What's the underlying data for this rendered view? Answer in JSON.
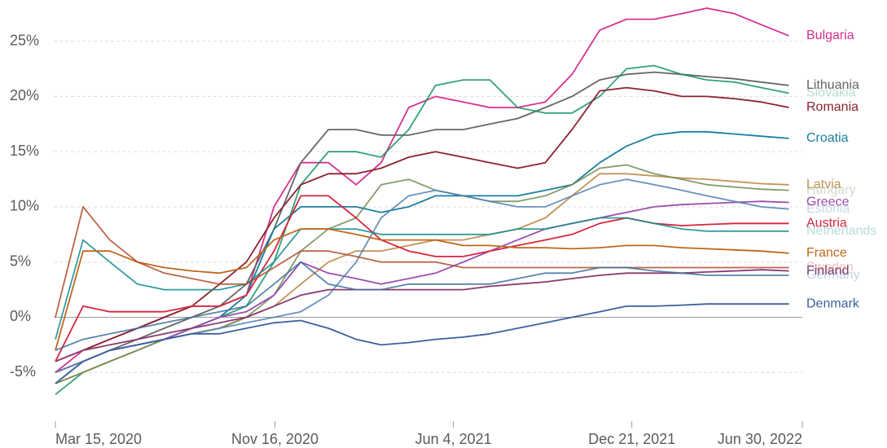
{
  "chart_data": {
    "type": "line",
    "x": [
      "2020-03-15",
      "2020-04-15",
      "2020-05-15",
      "2020-06-15",
      "2020-07-15",
      "2020-08-15",
      "2020-09-15",
      "2020-10-15",
      "2020-11-15",
      "2020-12-15",
      "2021-01-15",
      "2021-02-15",
      "2021-03-15",
      "2021-04-15",
      "2021-05-15",
      "2021-06-15",
      "2021-07-15",
      "2021-08-15",
      "2021-09-15",
      "2021-10-15",
      "2021-11-15",
      "2021-12-15",
      "2022-01-15",
      "2022-02-15",
      "2022-03-15",
      "2022-04-15",
      "2022-05-15",
      "2022-06-15"
    ],
    "xlim": [
      "2020-03-15",
      "2022-06-30"
    ],
    "xticks": [
      {
        "value": "2020-03-15",
        "label": "Mar 15, 2020"
      },
      {
        "value": "2020-11-16",
        "label": "Nov 16, 2020"
      },
      {
        "value": "2021-06-04",
        "label": "Jun 4, 2021"
      },
      {
        "value": "2021-12-21",
        "label": "Dec 21, 2021"
      },
      {
        "value": "2022-06-30",
        "label": "Jun 30, 2022"
      }
    ],
    "ylim": [
      -10,
      28
    ],
    "yticks": [
      {
        "value": -5,
        "label": "-5%"
      },
      {
        "value": 0,
        "label": "0%"
      },
      {
        "value": 5,
        "label": "5%"
      },
      {
        "value": 10,
        "label": "10%"
      },
      {
        "value": 15,
        "label": "15%"
      },
      {
        "value": 20,
        "label": "20%"
      },
      {
        "value": 25,
        "label": "25%"
      }
    ],
    "grid": true,
    "series": [
      {
        "name": "Bulgaria",
        "color": "#d6318f",
        "muted": false,
        "values": [
          -5,
          -3,
          -2,
          -1,
          0,
          1,
          1,
          2,
          10,
          14,
          14,
          12,
          14,
          19,
          20,
          19.5,
          19,
          19,
          19.5,
          22,
          26,
          27,
          27,
          27.5,
          28,
          27.5,
          26.5,
          25.5
        ]
      },
      {
        "name": "Lithuania",
        "color": "#666666",
        "muted": false,
        "values": [
          -6,
          -4,
          -3,
          -2,
          -1,
          0,
          1,
          3,
          8,
          14,
          17,
          17,
          16.5,
          16.5,
          17,
          17,
          17.5,
          18,
          19,
          20,
          21.5,
          22,
          22.2,
          22,
          21.8,
          21.6,
          21.3,
          21
        ]
      },
      {
        "name": "Slovakia",
        "color": "#109060",
        "muted": true,
        "values": [
          -7,
          -5,
          -4,
          -3,
          -2,
          -1,
          0,
          1,
          5,
          12,
          15,
          15,
          14.5,
          17,
          21,
          21.5,
          21.5,
          19,
          18.5,
          18.5,
          20,
          22.5,
          22.8,
          22,
          21.5,
          21.3,
          20.8,
          20.3
        ]
      },
      {
        "name": "Romania",
        "color": "#8b2330",
        "muted": false,
        "values": [
          -4,
          -3,
          -2,
          -1,
          0,
          1,
          3,
          5,
          9,
          12,
          13,
          13,
          13.5,
          14.5,
          15,
          14.5,
          14,
          13.5,
          14,
          17,
          20.5,
          20.8,
          20.5,
          20,
          20,
          19.8,
          19.5,
          19
        ]
      },
      {
        "name": "Croatia",
        "color": "#1a7fa0",
        "muted": false,
        "values": [
          -5,
          -4,
          -3,
          -2.5,
          -2,
          -1,
          0,
          2,
          8,
          10,
          10,
          10,
          9.5,
          10,
          11,
          11,
          11,
          11,
          11.5,
          12,
          14,
          15.5,
          16.5,
          16.8,
          16.8,
          16.6,
          16.4,
          16.2
        ]
      },
      {
        "name": "Latvia",
        "color": "#c39256",
        "muted": false,
        "values": [
          -6,
          -5,
          -4,
          -3,
          -2,
          -1.5,
          -1,
          0,
          1,
          3,
          5,
          6,
          6,
          6.5,
          7,
          7,
          7.5,
          8,
          9,
          11,
          13,
          13,
          12.8,
          12.6,
          12.5,
          12.3,
          12.1,
          12
        ]
      },
      {
        "name": "Hungary",
        "color": "#6c8c52",
        "muted": true,
        "values": [
          -6,
          -5,
          -4,
          -3,
          -2,
          -1.5,
          -1,
          0,
          2,
          6,
          8,
          9,
          12,
          12.5,
          11.5,
          11,
          10.5,
          10.5,
          11,
          12,
          13.5,
          13.8,
          13,
          12.5,
          12,
          11.8,
          11.6,
          11.5
        ]
      },
      {
        "name": "Greece",
        "color": "#9b4db0",
        "muted": false,
        "values": [
          -5,
          -4,
          -3,
          -2.5,
          -2,
          -1,
          0,
          0.5,
          2,
          5,
          4,
          3.5,
          3,
          3.5,
          4,
          5,
          6,
          7,
          8,
          8.5,
          9,
          9.5,
          10,
          10.2,
          10.3,
          10.4,
          10.5,
          10.4
        ]
      },
      {
        "name": "Estonia",
        "color": "#4d7fb0",
        "muted": true,
        "values": [
          -5,
          -4,
          -3,
          -2.5,
          -2,
          -1.5,
          -1,
          -0.5,
          0,
          0.5,
          2,
          5,
          9,
          11,
          11.5,
          11,
          10.5,
          10,
          10,
          11,
          12,
          12.5,
          12,
          11.5,
          11,
          10.5,
          10,
          9.8
        ]
      },
      {
        "name": "Austria",
        "color": "#d7263d",
        "muted": false,
        "values": [
          -4,
          1,
          0.5,
          0.5,
          0.5,
          1,
          1,
          2,
          6,
          11,
          11,
          9,
          7,
          6,
          5.5,
          5.5,
          6,
          6.5,
          7,
          7.5,
          8.5,
          9,
          8.5,
          8.3,
          8.4,
          8.5,
          8.5,
          8.5
        ]
      },
      {
        "name": "Netherlands",
        "color": "#108c8c",
        "muted": true,
        "values": [
          -2,
          7,
          5,
          3,
          2.5,
          2.5,
          2.5,
          3,
          5,
          8,
          8,
          8,
          7.5,
          7.5,
          7.5,
          7.5,
          7.5,
          8,
          8,
          8.5,
          9,
          9,
          8.5,
          8,
          7.8,
          7.8,
          7.8,
          7.8
        ]
      },
      {
        "name": "France",
        "color": "#c0661b",
        "muted": false,
        "values": [
          -3,
          6,
          6,
          5,
          4.5,
          4.2,
          4,
          4.5,
          7,
          8,
          8,
          7.5,
          7,
          7,
          7,
          6.5,
          6.5,
          6.3,
          6.3,
          6.2,
          6.3,
          6.5,
          6.5,
          6.3,
          6.2,
          6.1,
          6,
          5.8
        ]
      },
      {
        "name": "Sweden",
        "color": "#b04a2a",
        "muted": true,
        "values": [
          0,
          10,
          7,
          5,
          4,
          3.5,
          3,
          3,
          4.5,
          6,
          6,
          5.5,
          5,
          5,
          5,
          4.5,
          4.5,
          4.5,
          4.5,
          4.5,
          4.5,
          4.5,
          4.5,
          4.5,
          4.5,
          4.5,
          4.5,
          4.5
        ]
      },
      {
        "name": "Finland",
        "color": "#8a3a6e",
        "muted": false,
        "values": [
          -4,
          -3,
          -2.5,
          -2,
          -1.5,
          -1,
          -0.5,
          0,
          1,
          2,
          2.5,
          2.5,
          2.5,
          2.5,
          2.5,
          2.5,
          2.8,
          3,
          3.2,
          3.5,
          3.8,
          4,
          4,
          4,
          4.1,
          4.2,
          4.3,
          4.2
        ]
      },
      {
        "name": "Germany",
        "color": "#3d6e9e",
        "muted": true,
        "values": [
          -3,
          -2,
          -1.5,
          -1,
          -0.5,
          0,
          0.5,
          1,
          3,
          5,
          3,
          2.5,
          2.5,
          3,
          3,
          3,
          3,
          3.5,
          4,
          4,
          4.5,
          4.5,
          4.2,
          4,
          3.8,
          3.8,
          3.8,
          3.8
        ]
      },
      {
        "name": "Denmark",
        "color": "#3b5fa0",
        "muted": false,
        "values": [
          -6,
          -4,
          -3,
          -2.5,
          -2,
          -1.5,
          -1.5,
          -1,
          -0.5,
          -0.3,
          -1,
          -2,
          -2.5,
          -2.3,
          -2,
          -1.8,
          -1.5,
          -1,
          -0.5,
          0,
          0.5,
          1,
          1,
          1.1,
          1.2,
          1.2,
          1.2,
          1.2
        ]
      }
    ]
  }
}
